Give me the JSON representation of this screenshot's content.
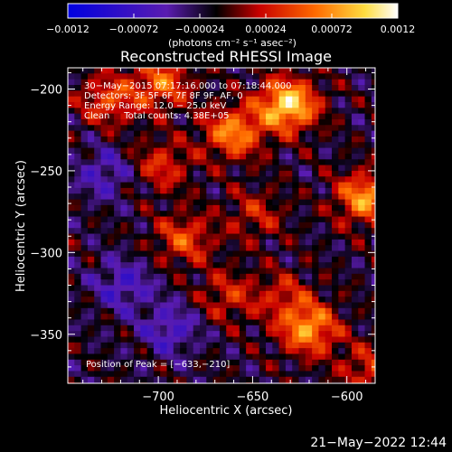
{
  "chart_data": {
    "type": "heatmap",
    "title": "Reconstructed RHESSI Image",
    "xlabel": "Heliocentric X (arcsec)",
    "ylabel": "Heliocentric Y (arcsec)",
    "xlim": [
      -748,
      -585
    ],
    "ylim": [
      -380,
      -187
    ],
    "x_ticks": [
      -700,
      -650,
      -600
    ],
    "x_tick_labels": [
      "−700",
      "−650",
      "−600"
    ],
    "y_ticks": [
      -200,
      -250,
      -300,
      -350
    ],
    "y_tick_labels": [
      "−200",
      "−250",
      "−300",
      "−350"
    ],
    "colorbar": {
      "range": [
        -0.0012,
        0.0012
      ],
      "ticks": [
        -0.0012,
        -0.00072,
        -0.00024,
        0.00024,
        0.00072,
        0.0012
      ],
      "tick_labels": [
        "−0.0012",
        "−0.00072",
        "−0.00024",
        "0.00024",
        "0.00072",
        "0.0012"
      ],
      "units": "(photons cm⁻² s⁻¹ asec⁻²)",
      "colors": [
        "#0000e0",
        "#5a1cb0",
        "#000000",
        "#c80000",
        "#ff6a00",
        "#ffdd40",
        "#ffffff"
      ]
    },
    "annotations": [
      "30−May−2015 07:17:16.000 to 07:18:44.000",
      "Detectors: 3F 5F 6F 7F 8F 9F, AF, 0",
      "Energy Range: 12.0 − 25.0 keV",
      "Clean     Total counts: 4.38E+05"
    ],
    "peak": {
      "x": -633,
      "y": -210,
      "label": "Position of Peak = [−633,−210]"
    },
    "sources": [
      {
        "x": -633,
        "y": -208,
        "value": 0.0012
      },
      {
        "x": -662,
        "y": -225,
        "value": 0.00085
      },
      {
        "x": -592,
        "y": -265,
        "value": 0.0009
      },
      {
        "x": -622,
        "y": -345,
        "value": 0.0009
      },
      {
        "x": -688,
        "y": -290,
        "value": 0.0006
      },
      {
        "x": -700,
        "y": -195,
        "value": 0.0007
      },
      {
        "x": -728,
        "y": -205,
        "value": 0.0006
      },
      {
        "x": -700,
        "y": -245,
        "value": 0.0005
      },
      {
        "x": -650,
        "y": -275,
        "value": 0.0004
      },
      {
        "x": -665,
        "y": -325,
        "value": 0.00045
      },
      {
        "x": -635,
        "y": -325,
        "value": 0.0004
      },
      {
        "x": -590,
        "y": -370,
        "value": 0.0005
      },
      {
        "x": -720,
        "y": -318,
        "value": -0.00045
      },
      {
        "x": -730,
        "y": -250,
        "value": -0.0004
      },
      {
        "x": -695,
        "y": -345,
        "value": -0.00045
      }
    ]
  },
  "footer": {
    "date": "21−May−2022 12:44"
  }
}
